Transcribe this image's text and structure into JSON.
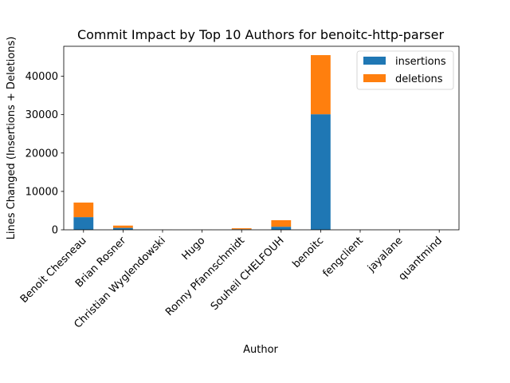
{
  "chart_data": {
    "type": "bar",
    "stacked": true,
    "title": "Commit Impact by Top 10 Authors for benoitc-http-parser",
    "xlabel": "Author",
    "ylabel": "Lines Changed (Insertions + Deletions)",
    "ylim": [
      0,
      47800
    ],
    "yticks": [
      0,
      10000,
      20000,
      30000,
      40000
    ],
    "categories": [
      "Benoit Chesneau",
      "Brian Rosner",
      "Christian Wyglendowski",
      "Hugo",
      "Ronny Pfannschmidt",
      "Souheil CHELFOUH",
      "benoitc",
      "fengclient",
      "jayalane",
      "quantmind"
    ],
    "series": [
      {
        "name": "insertions",
        "color": "#1f77b4",
        "values": [
          3300,
          500,
          10,
          10,
          150,
          800,
          30100,
          10,
          10,
          10
        ]
      },
      {
        "name": "deletions",
        "color": "#ff7f0e",
        "values": [
          3800,
          600,
          10,
          10,
          250,
          1700,
          15400,
          10,
          10,
          10
        ]
      }
    ],
    "legend": "top-right",
    "grid": false
  }
}
